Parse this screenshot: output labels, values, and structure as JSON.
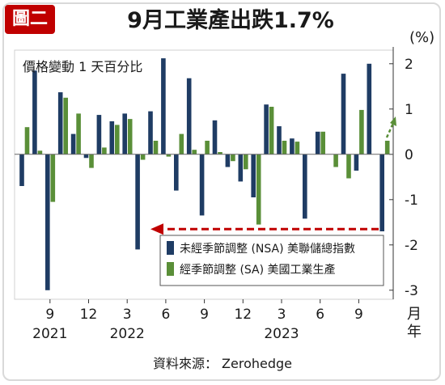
{
  "badge": "圖二",
  "title": "9月工業產出跌1.7%",
  "unit": "(%)",
  "source": "資料來源： Zerohedge",
  "chart_data": {
    "type": "bar",
    "subtitle": "價格變動 1 天百分比",
    "ylim": [
      -3.2,
      2.3
    ],
    "yticks": [
      2,
      1,
      0,
      -1,
      -2,
      -3
    ],
    "x_tick_labels": [
      {
        "label": "9",
        "year": "2021"
      },
      {
        "label": "12",
        "year": ""
      },
      {
        "label": "3",
        "year": "2022"
      },
      {
        "label": "6",
        "year": ""
      },
      {
        "label": "9",
        "year": ""
      },
      {
        "label": "12",
        "year": ""
      },
      {
        "label": "3",
        "year": "2023"
      },
      {
        "label": "6",
        "year": ""
      },
      {
        "label": "9",
        "year": ""
      }
    ],
    "x_axis_unit": "月\n年",
    "series": [
      {
        "name": "未經季節調整 (NSA) 美聯儲總指數",
        "color": "#1f3c64",
        "values": [
          -0.7,
          1.85,
          -3.0,
          1.37,
          0.45,
          -0.08,
          0.87,
          0.73,
          0.9,
          -2.1,
          0.95,
          2.12,
          -0.8,
          1.68,
          -1.35,
          0.75,
          -0.28,
          -0.6,
          -0.95,
          1.1,
          0.62,
          0.35,
          -1.42,
          0.5,
          0.0,
          1.78,
          -0.36,
          2.0,
          -1.7
        ]
      },
      {
        "name": "經季節調整 (SA) 美國工業生產",
        "color": "#5a8f38",
        "values": [
          0.6,
          0.08,
          -1.05,
          1.25,
          0.9,
          -0.3,
          0.15,
          0.65,
          0.78,
          -0.12,
          0.3,
          -0.05,
          0.45,
          0.1,
          0.3,
          0.05,
          -0.15,
          -0.33,
          -1.55,
          1.05,
          0.3,
          0.28,
          0.0,
          0.5,
          -0.28,
          -0.53,
          0.98,
          0.0,
          0.3
        ]
      }
    ],
    "annotation": "-1.7"
  }
}
